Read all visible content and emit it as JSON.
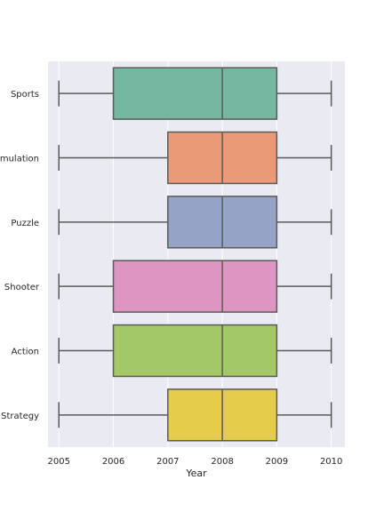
{
  "chart_data": {
    "type": "boxplot",
    "orientation": "horizontal",
    "title": "",
    "xlabel": "Year",
    "ylabel": "",
    "xlim": [
      2004.8,
      2010.25
    ],
    "xticks": [
      2005,
      2006,
      2007,
      2008,
      2009,
      2010
    ],
    "grid": true,
    "categories": [
      "Sports",
      "Simulation",
      "Puzzle",
      "Shooter",
      "Action",
      "Strategy"
    ],
    "boxes": [
      {
        "category": "Sports",
        "min": 2005,
        "q1": 2006,
        "median": 2008,
        "q3": 2009,
        "max": 2010,
        "color": "#76b7a2"
      },
      {
        "category": "Simulation",
        "min": 2005,
        "q1": 2007,
        "median": 2008,
        "q3": 2009,
        "max": 2010,
        "color": "#eb9a78"
      },
      {
        "category": "Puzzle",
        "min": 2005,
        "q1": 2007,
        "median": 2008,
        "q3": 2009,
        "max": 2010,
        "color": "#95a4c6"
      },
      {
        "category": "Shooter",
        "min": 2005,
        "q1": 2006,
        "median": 2008,
        "q3": 2009,
        "max": 2010,
        "color": "#dc96c1"
      },
      {
        "category": "Action",
        "min": 2005,
        "q1": 2006,
        "median": 2008,
        "q3": 2009,
        "max": 2010,
        "color": "#a3c966"
      },
      {
        "category": "Strategy",
        "min": 2005,
        "q1": 2007,
        "median": 2008,
        "q3": 2009,
        "max": 2010,
        "color": "#e6cc4b"
      }
    ]
  },
  "colors": {
    "plot_background": "#eaeaf2",
    "grid": "#ffffff",
    "outline": "#5a5a5a",
    "text": "#262626"
  }
}
